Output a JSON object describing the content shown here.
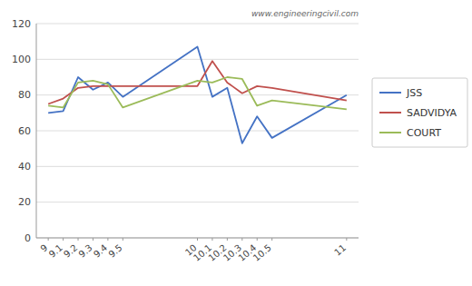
{
  "chart_data": {
    "type": "line",
    "annotations": [
      "www.engineeringcivil.com"
    ],
    "x": [
      9.0,
      9.1,
      9.2,
      9.3,
      9.4,
      9.5,
      10.0,
      10.1,
      10.2,
      10.3,
      10.4,
      10.5,
      11.0
    ],
    "series": [
      {
        "name": "JSS",
        "color": "#4472C4",
        "values": [
          70,
          71,
          90,
          83,
          87,
          79,
          107,
          79,
          84,
          53,
          68,
          56,
          80
        ]
      },
      {
        "name": "SADVIDYA",
        "color": "#C0504D",
        "values": [
          75,
          78,
          84,
          85,
          85,
          85,
          85,
          99,
          87,
          81,
          85,
          84,
          77
        ]
      },
      {
        "name": "COURT",
        "color": "#9BBB59",
        "values": [
          74,
          73,
          87,
          88,
          86,
          73,
          88,
          87,
          90,
          89,
          74,
          77,
          72
        ]
      }
    ],
    "xlim": [
      8.92,
      11.08
    ],
    "xticks": [
      9,
      9.1,
      9.2,
      9.3,
      9.4,
      9.5,
      10,
      10.1,
      10.2,
      10.3,
      10.4,
      10.5,
      11
    ],
    "ylim": [
      0,
      120
    ],
    "yticks": [
      0,
      20,
      40,
      60,
      80,
      100,
      120
    ],
    "grid": true,
    "legend": "right"
  }
}
